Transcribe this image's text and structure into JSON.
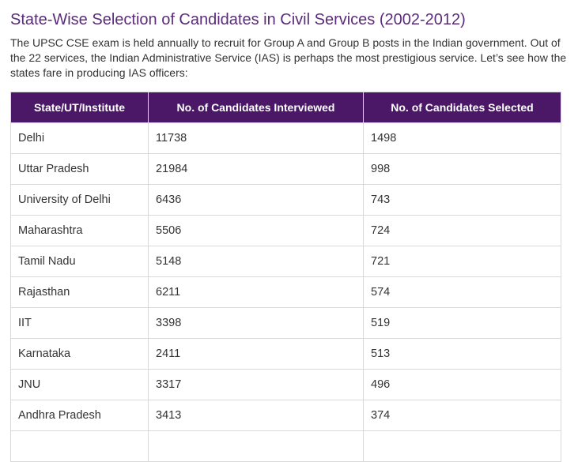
{
  "article": {
    "title": "State-Wise Selection of Candidates in Civil Services (2002-2012)",
    "intro": "The UPSC CSE exam is held annually to recruit for Group A and Group B posts in the Indian government. Out of the 22 services, the Indian Administrative Service (IAS) is perhaps the most prestigious service. Let’s see how the states fare in producing IAS officers:"
  },
  "table": {
    "headers": [
      "State/UT/Institute",
      "No. of Candidates Interviewed",
      "No. of Candidates Selected"
    ],
    "rows": [
      [
        "Delhi",
        "11738",
        "1498"
      ],
      [
        "Uttar Pradesh",
        "21984",
        "998"
      ],
      [
        "University of Delhi",
        "6436",
        "743"
      ],
      [
        "Maharashtra",
        "5506",
        "724"
      ],
      [
        "Tamil Nadu",
        "5148",
        "721"
      ],
      [
        "Rajasthan",
        "6211",
        "574"
      ],
      [
        "IIT",
        "3398",
        "519"
      ],
      [
        "Karnataka",
        "2411",
        "513"
      ],
      [
        "JNU",
        "3317",
        "496"
      ],
      [
        "Andhra Pradesh",
        "3413",
        "374"
      ],
      [
        "",
        "",
        ""
      ]
    ]
  },
  "colors": {
    "title": "#5b2c7a",
    "header_bg": "#4b1868",
    "border": "#d9d9d9"
  }
}
